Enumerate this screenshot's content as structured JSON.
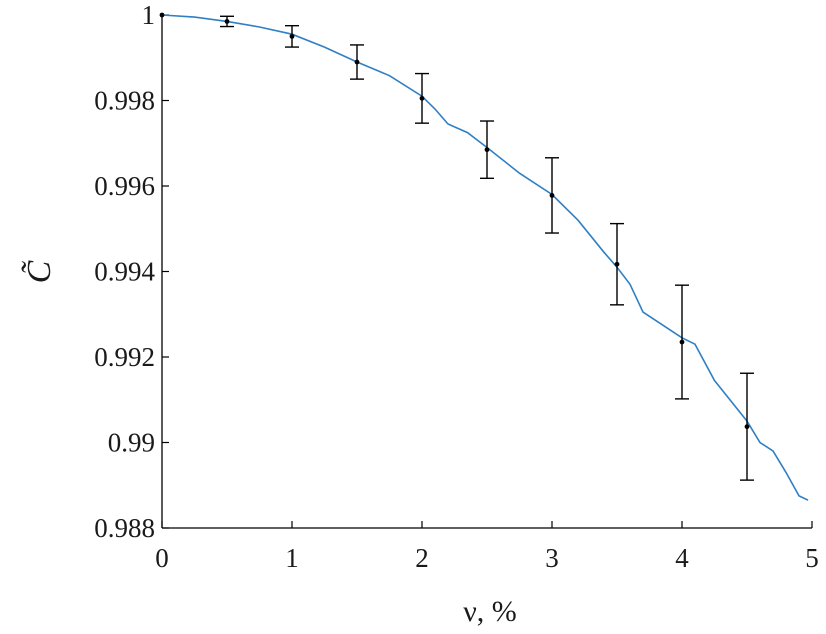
{
  "chart_data": {
    "type": "line",
    "xlabel": "ν, %",
    "ylabel": "C̃",
    "xlim": [
      0,
      5
    ],
    "ylim": [
      0.988,
      1.0
    ],
    "xticks": [
      "0",
      "1",
      "2",
      "3",
      "4",
      "5"
    ],
    "yticks": [
      "0.988",
      "0.99",
      "0.992",
      "0.994",
      "0.996",
      "0.998",
      "1"
    ],
    "grid": false,
    "colors": {
      "curve": "#2f7fc4",
      "errorbars": "#000000"
    },
    "series": [
      {
        "type": "line",
        "x": [
          0,
          0.25,
          0.5,
          0.75,
          1.0,
          1.25,
          1.5,
          1.75,
          2.0,
          2.1,
          2.2,
          2.35,
          2.5,
          2.75,
          3.0,
          3.2,
          3.4,
          3.5,
          3.6,
          3.7,
          3.85,
          4.0,
          4.1,
          4.25,
          4.5,
          4.6,
          4.7,
          4.8,
          4.9,
          4.97
        ],
        "y": [
          1.0,
          0.99995,
          0.99985,
          0.99972,
          0.99955,
          0.99925,
          0.9989,
          0.99858,
          0.9981,
          0.9978,
          0.99745,
          0.99725,
          0.9969,
          0.9963,
          0.9958,
          0.9952,
          0.99445,
          0.9941,
          0.9937,
          0.99305,
          0.99275,
          0.99245,
          0.9923,
          0.99145,
          0.9905,
          0.99,
          0.9898,
          0.9893,
          0.98875,
          0.98865
        ]
      },
      {
        "type": "errorbar",
        "x": [
          0,
          0.5,
          1.0,
          1.5,
          2.0,
          2.5,
          3.0,
          3.5,
          4.0,
          4.5
        ],
        "y": [
          1.0,
          0.99985,
          0.9995,
          0.9989,
          0.99805,
          0.99685,
          0.99578,
          0.99417,
          0.99235,
          0.99037
        ],
        "err": [
          0,
          0.00012,
          0.00025,
          0.0004,
          0.00058,
          0.00067,
          0.00088,
          0.00095,
          0.00133,
          0.00125
        ]
      }
    ]
  }
}
